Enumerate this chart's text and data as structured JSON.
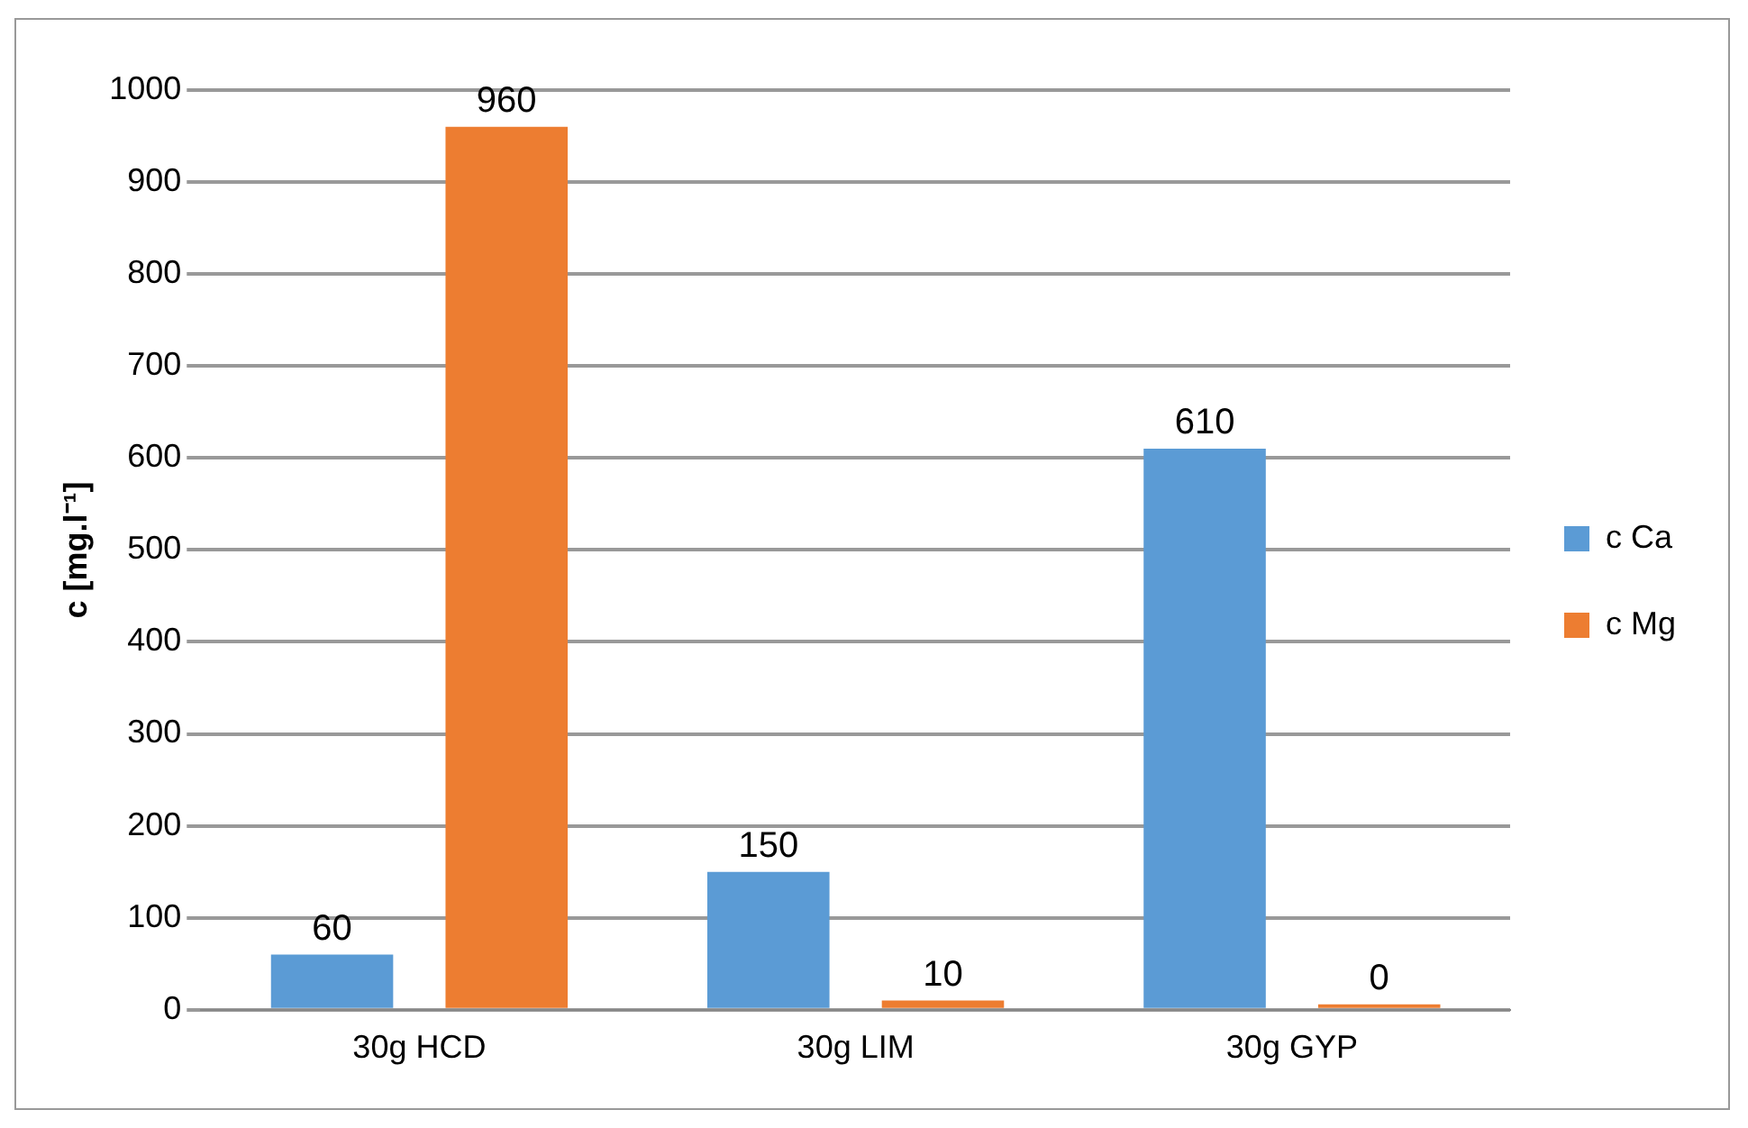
{
  "chart_data": {
    "type": "bar",
    "ylabel": "c [mg.l⁻¹]",
    "categories": [
      "30g HCD",
      "30g LIM",
      "30g GYP"
    ],
    "series": [
      {
        "name": "c Ca",
        "color": "#5b9bd5",
        "values": [
          60,
          150,
          610
        ]
      },
      {
        "name": "c Mg",
        "color": "#ed7d31",
        "values": [
          960,
          10,
          0
        ]
      }
    ],
    "ylim": [
      0,
      1000
    ],
    "yticks": [
      0,
      100,
      200,
      300,
      400,
      500,
      600,
      700,
      800,
      900,
      1000
    ],
    "grid": "y",
    "legend": "right",
    "data_labels": true
  }
}
